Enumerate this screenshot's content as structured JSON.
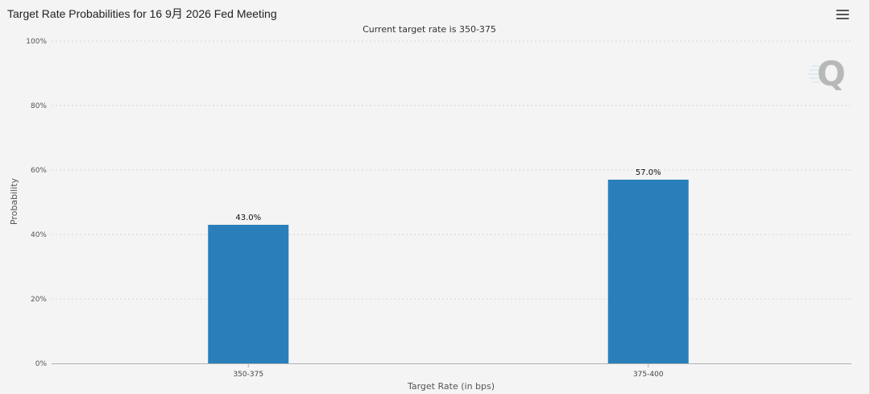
{
  "header": {
    "title": "Target Rate Probabilities for 16 9月 2026 Fed Meeting",
    "menu_icon": "hamburger-menu-icon"
  },
  "watermark": {
    "text": "Q"
  },
  "chart_data": {
    "type": "bar",
    "title": "Target Rate Probabilities for 16 9月 2026 Fed Meeting",
    "subtitle": "Current target rate is 350-375",
    "categories": [
      "350-375",
      "375-400"
    ],
    "values": [
      43.0,
      57.0
    ],
    "value_labels": [
      "43.0%",
      "57.0%"
    ],
    "xlabel": "Target Rate (in bps)",
    "ylabel": "Probability",
    "ylim": [
      0,
      100
    ],
    "yticks": [
      0,
      20,
      40,
      60,
      80,
      100
    ],
    "ytick_labels": [
      "0%",
      "20%",
      "40%",
      "60%",
      "80%",
      "100%"
    ],
    "grid": true,
    "legend": "none",
    "bar_color": "#2a7fba"
  }
}
